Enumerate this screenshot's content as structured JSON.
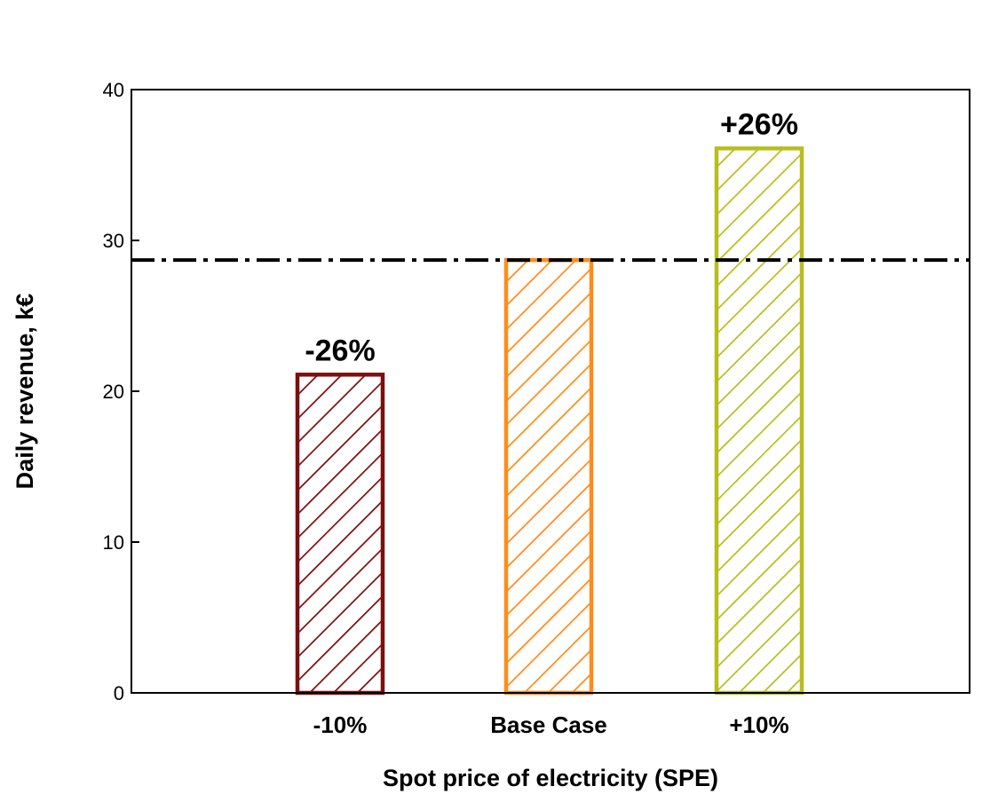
{
  "chart_data": {
    "type": "bar",
    "categories": [
      "-10%",
      "Base Case",
      "+10%"
    ],
    "values": [
      21.1,
      28.7,
      36.1
    ],
    "title": "",
    "xlabel": "Spot price of electricity (SPE)",
    "ylabel": "Daily revenue, k€",
    "ylim": [
      0,
      40
    ],
    "yticks": [
      0,
      10,
      20,
      30,
      40
    ],
    "bar_colors": [
      "#7b1010",
      "#ff8c1a",
      "#b8be1e"
    ],
    "bar_fill": "diagonal-hatch",
    "annotations": [
      {
        "category": "-10%",
        "text": "-26%"
      },
      {
        "category": "+10%",
        "text": "+26%"
      }
    ],
    "reference_line": {
      "y": 28.7,
      "style": "dash-dot",
      "color": "#000000"
    },
    "grid": false,
    "legend": "none"
  }
}
